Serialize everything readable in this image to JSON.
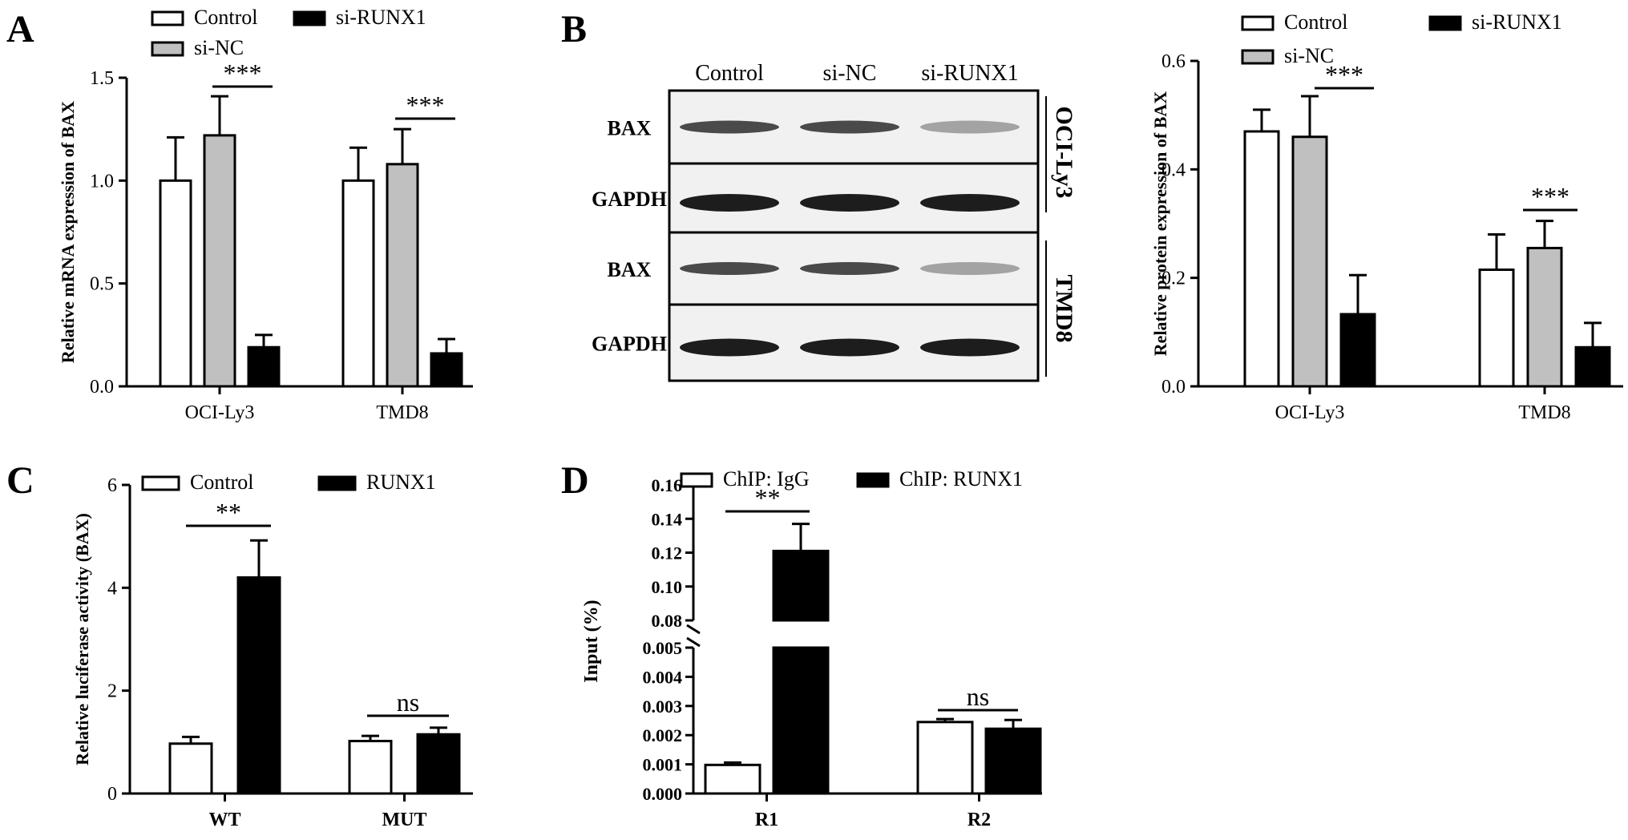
{
  "panels": {
    "A": {
      "letter": "A",
      "legend": [
        "Control",
        "si-NC",
        "si-RUNX1"
      ],
      "chart_data": {
        "type": "bar",
        "title": "",
        "ylabel": "Relative mRNA expression of BAX",
        "ylim": [
          0,
          1.5
        ],
        "yticks": [
          "0.0",
          "0.5",
          "1.0",
          "1.5"
        ],
        "categories": [
          "OCI-Ly3",
          "TMD8"
        ],
        "series": [
          {
            "name": "Control",
            "values": [
              1.0,
              1.0
            ],
            "errors": [
              0.21,
              0.16
            ]
          },
          {
            "name": "si-NC",
            "values": [
              1.22,
              1.08
            ],
            "errors": [
              0.19,
              0.17
            ]
          },
          {
            "name": "si-RUNX1",
            "values": [
              0.19,
              0.16
            ],
            "errors": [
              0.06,
              0.07
            ]
          }
        ],
        "annotations": [
          {
            "label": "***",
            "category": "OCI-Ly3"
          },
          {
            "label": "***",
            "category": "TMD8"
          }
        ]
      }
    },
    "B": {
      "letter": "B",
      "blot": {
        "lanes": [
          "Control",
          "si-NC",
          "si-RUNX1"
        ],
        "rows": [
          "BAX",
          "GAPDH",
          "BAX",
          "GAPDH"
        ],
        "cell_lines": [
          "OCI-Ly3",
          "TMD8"
        ]
      },
      "legend": [
        "Control",
        "si-NC",
        "si-RUNX1"
      ],
      "chart_data": {
        "type": "bar",
        "title": "",
        "ylabel": "Relative protein expression of BAX",
        "ylim": [
          0,
          0.6
        ],
        "yticks": [
          "0.0",
          "0.2",
          "0.4",
          "0.6"
        ],
        "categories": [
          "OCI-Ly3",
          "TMD8"
        ],
        "series": [
          {
            "name": "Control",
            "values": [
              0.47,
              0.215
            ],
            "errors": [
              0.04,
              0.065
            ]
          },
          {
            "name": "si-NC",
            "values": [
              0.46,
              0.255
            ],
            "errors": [
              0.075,
              0.05
            ]
          },
          {
            "name": "si-RUNX1",
            "values": [
              0.133,
              0.072
            ],
            "errors": [
              0.072,
              0.045
            ]
          }
        ],
        "annotations": [
          {
            "label": "***",
            "category": "OCI-Ly3"
          },
          {
            "label": "***",
            "category": "TMD8"
          }
        ]
      }
    },
    "C": {
      "letter": "C",
      "legend": [
        "Control",
        "RUNX1"
      ],
      "chart_data": {
        "type": "bar",
        "title": "",
        "ylabel": "Relative luciferase activity (BAX)",
        "ylim": [
          0,
          6
        ],
        "yticks": [
          "0",
          "2",
          "4",
          "6"
        ],
        "categories": [
          "WT",
          "MUT"
        ],
        "series": [
          {
            "name": "Control",
            "values": [
              0.97,
              1.02
            ],
            "errors": [
              0.13,
              0.1
            ]
          },
          {
            "name": "RUNX1",
            "values": [
              4.2,
              1.15
            ],
            "errors": [
              0.72,
              0.13
            ]
          }
        ],
        "annotations": [
          {
            "label": "**",
            "category": "WT"
          },
          {
            "label": "ns",
            "category": "MUT"
          }
        ]
      }
    },
    "D": {
      "letter": "D",
      "legend": [
        "ChIP: IgG",
        "ChIP: RUNX1"
      ],
      "chart_data": {
        "type": "bar",
        "title": "",
        "ylabel": "Input (%)",
        "axis_break": true,
        "ylim_lower": [
          0,
          0.005
        ],
        "ylim_upper": [
          0.08,
          0.16
        ],
        "yticks_lower": [
          "0.000",
          "0.001",
          "0.002",
          "0.003",
          "0.004",
          "0.005"
        ],
        "yticks_upper": [
          "0.08",
          "0.10",
          "0.12",
          "0.14",
          "0.16"
        ],
        "categories": [
          "R1",
          "R2"
        ],
        "series": [
          {
            "name": "ChIP: IgG",
            "values": [
              0.00098,
              0.00245
            ],
            "errors": [
              8e-05,
              0.0001
            ]
          },
          {
            "name": "ChIP: RUNX1",
            "values": [
              0.121,
              0.00222
            ],
            "errors": [
              0.016,
              0.0003
            ]
          }
        ],
        "annotations": [
          {
            "label": "**",
            "category": "R1"
          },
          {
            "label": "ns",
            "category": "R2"
          }
        ]
      }
    }
  }
}
